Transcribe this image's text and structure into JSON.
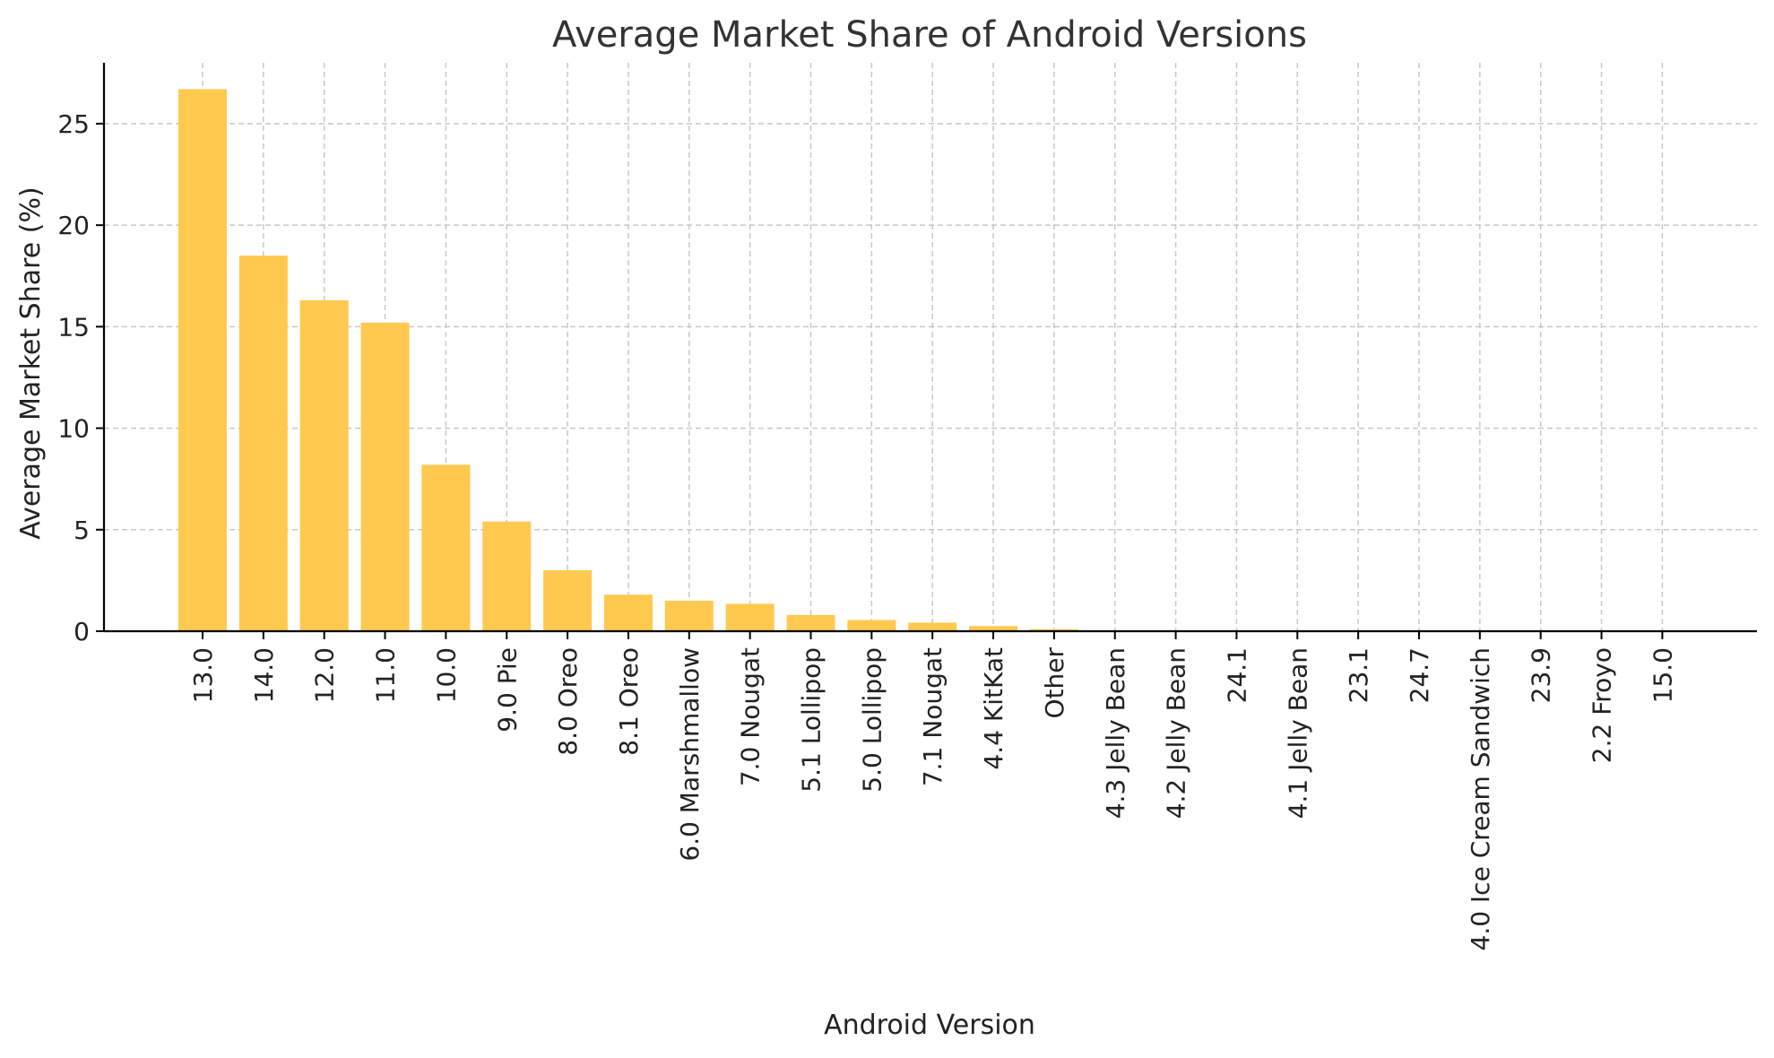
{
  "chart_data": {
    "type": "bar",
    "title": "Average Market Share of Android Versions",
    "xlabel": "Android Version",
    "ylabel": "Average Market Share (%)",
    "categories": [
      "13.0",
      "14.0",
      "12.0",
      "11.0",
      "10.0",
      "9.0 Pie",
      "8.0 Oreo",
      "8.1 Oreo",
      "6.0 Marshmallow",
      "7.0 Nougat",
      "5.1 Lollipop",
      "5.0 Lollipop",
      "7.1 Nougat",
      "4.4 KitKat",
      "Other",
      "4.3 Jelly Bean",
      "4.2 Jelly Bean",
      "24.1",
      "4.1 Jelly Bean",
      "23.1",
      "24.7",
      "4.0 Ice Cream Sandwich",
      "23.9",
      "2.2 Froyo",
      "15.0"
    ],
    "values": [
      26.7,
      18.5,
      16.3,
      15.2,
      8.2,
      5.4,
      3.0,
      1.8,
      1.5,
      1.35,
      0.8,
      0.55,
      0.42,
      0.25,
      0.1,
      0.03,
      0.02,
      0.01,
      0.01,
      0.0,
      0.0,
      0.0,
      0.0,
      0.0,
      0.0
    ],
    "yticks": [
      0,
      5,
      10,
      15,
      20,
      25
    ],
    "ylim": [
      0,
      28
    ],
    "grid": true,
    "bar_color": "#FFC84F"
  }
}
